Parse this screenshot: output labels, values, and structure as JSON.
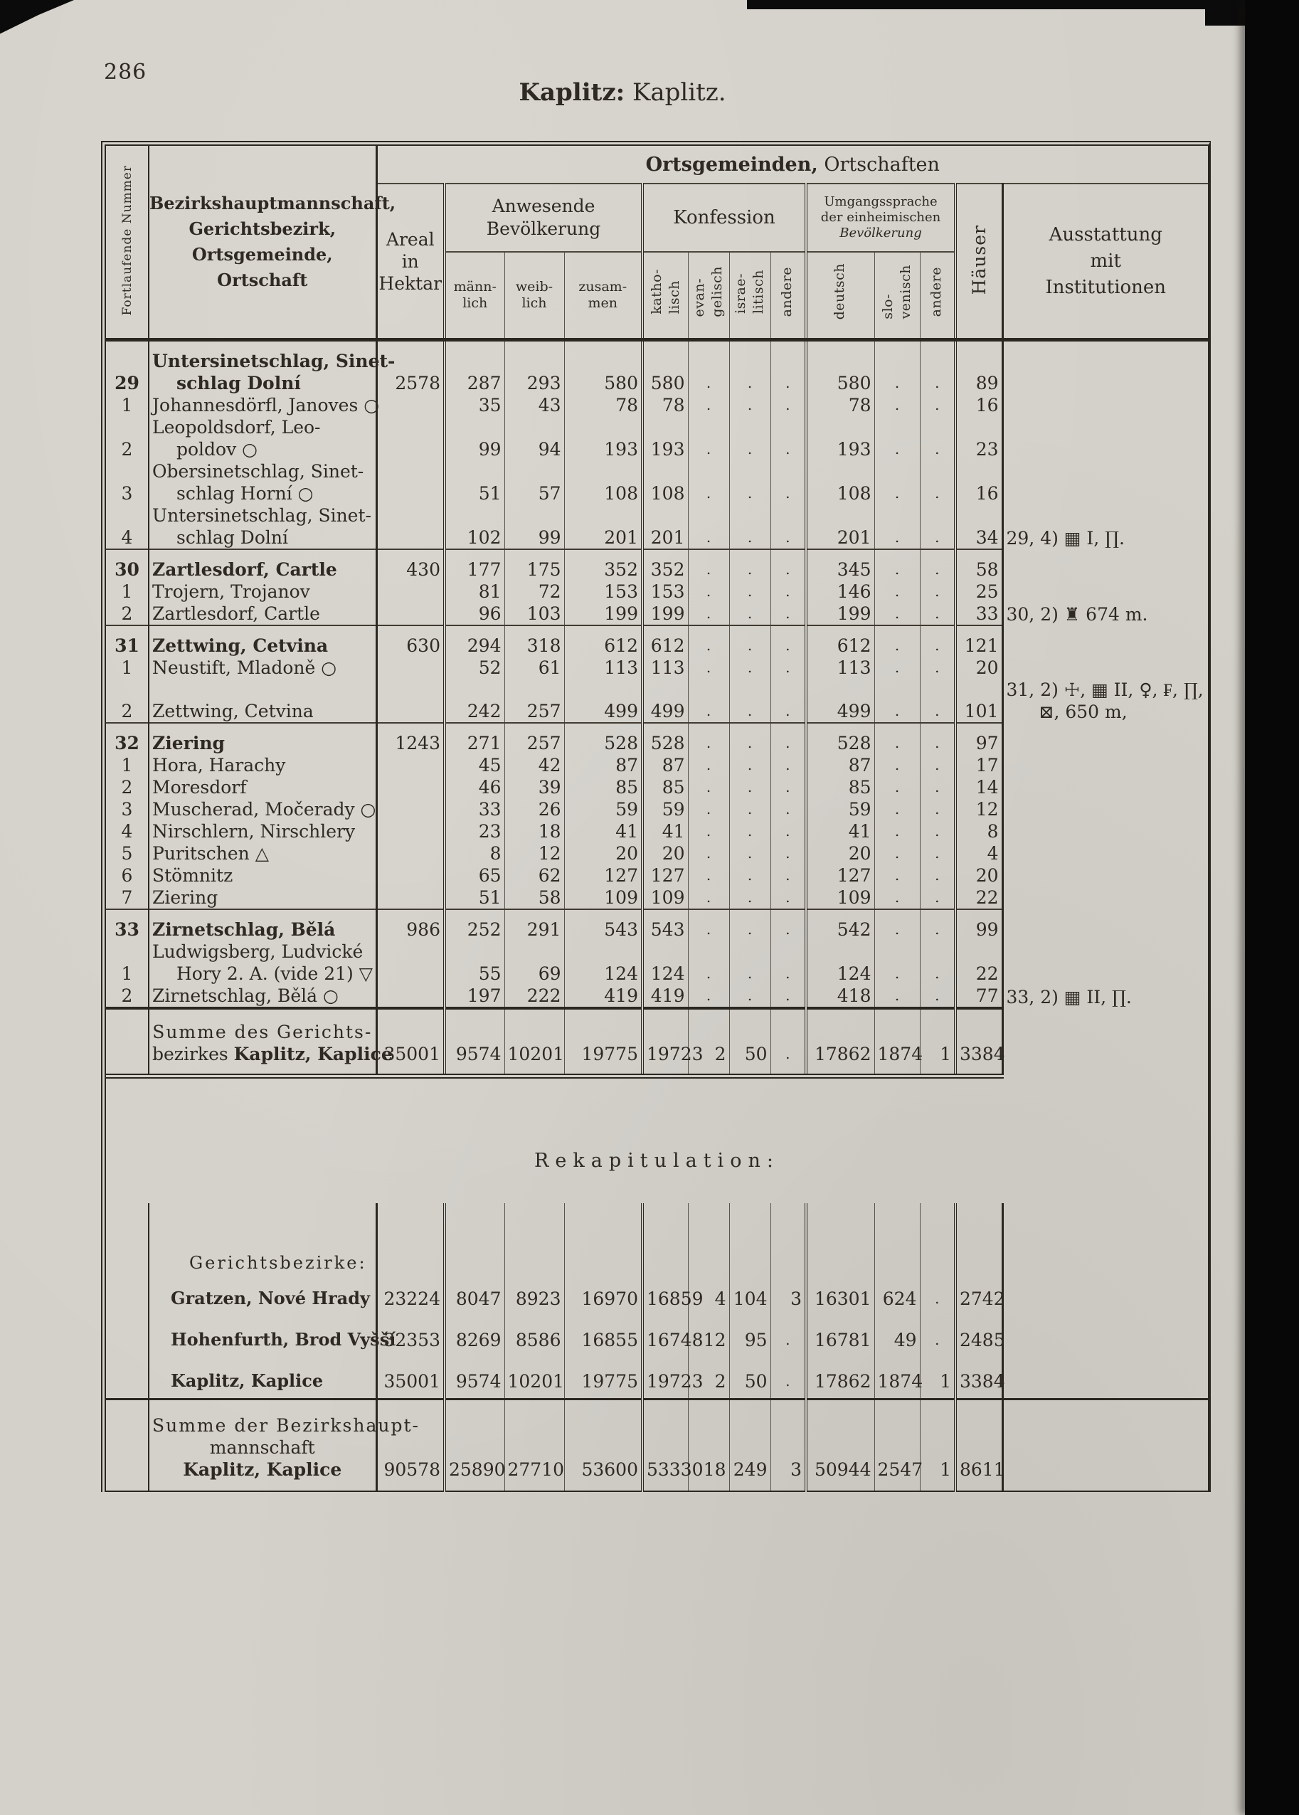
{
  "page": {
    "number": "286",
    "title_bold": "Kaplitz:",
    "title_regular": " Kaplitz."
  },
  "header": {
    "nr_rot": "Fortlaufende Nummer",
    "name_lines": [
      "Bezirkshauptmannschaft,",
      "Gerichtsbezirk,",
      "Ortsgemeinde,",
      "Ortschaft"
    ],
    "span_bold": "Ortsgemeinden,",
    "span_rest": " Ortschaften",
    "areal_lines": [
      "Areal",
      "in",
      "Hektar"
    ],
    "pop_group": [
      "Anwesende",
      "Bevölkerung"
    ],
    "pop_m": [
      "männ-",
      "lich"
    ],
    "pop_w": [
      "weib-",
      "lich"
    ],
    "pop_z": [
      "zusam-",
      "men"
    ],
    "konf_group": "Konfession",
    "konf_cols": [
      [
        "katho-",
        "lisch"
      ],
      [
        "evan-",
        "gelisch"
      ],
      [
        "israe-",
        "litisch"
      ],
      [
        "andere",
        ""
      ]
    ],
    "lang_group": [
      "Umgangssprache",
      "der einheimischen",
      "Bevölkerung"
    ],
    "lang_cols": [
      [
        "deutsch",
        ""
      ],
      [
        "slo-",
        "venisch"
      ],
      [
        "andere",
        ""
      ]
    ],
    "haus": "Häuser",
    "ausst_lines": [
      "Ausstattung",
      "mit",
      "Institutionen"
    ]
  },
  "rows": [
    {
      "nr": "29",
      "b": 1,
      "lines": [
        "Untersinetschlag, Sinet-",
        "schlag Dolní"
      ],
      "a": "2578",
      "m": "287",
      "w": "293",
      "z": "580",
      "k": "580",
      "e": ".",
      "i": ".",
      "o": ".",
      "d": "580",
      "s": ".",
      "o2": ".",
      "h": "89",
      "n": ""
    },
    {
      "nr": "1",
      "lines": [
        "Johannesdörfl, Janoves ○"
      ],
      "a": "",
      "m": "35",
      "w": "43",
      "z": "78",
      "k": "78",
      "e": ".",
      "i": ".",
      "o": ".",
      "d": "78",
      "s": ".",
      "o2": ".",
      "h": "16",
      "n": ""
    },
    {
      "nr": "2",
      "lines": [
        "Leopoldsdorf, Leo-",
        "poldov ○"
      ],
      "a": "",
      "m": "99",
      "w": "94",
      "z": "193",
      "k": "193",
      "e": ".",
      "i": ".",
      "o": ".",
      "d": "193",
      "s": ".",
      "o2": ".",
      "h": "23",
      "n": ""
    },
    {
      "nr": "3",
      "lines": [
        "Obersinetschlag, Sinet-",
        "schlag Horní ○"
      ],
      "a": "",
      "m": "51",
      "w": "57",
      "z": "108",
      "k": "108",
      "e": ".",
      "i": ".",
      "o": ".",
      "d": "108",
      "s": ".",
      "o2": ".",
      "h": "16",
      "n": ""
    },
    {
      "nr": "4",
      "lines": [
        "Untersinetschlag, Sinet-",
        "schlag Dolní"
      ],
      "a": "",
      "m": "102",
      "w": "99",
      "z": "201",
      "k": "201",
      "e": ".",
      "i": ".",
      "o": ".",
      "d": "201",
      "s": ".",
      "o2": ".",
      "h": "34",
      "n": "29, 4) ▦ I, ∏."
    },
    {
      "sep": "thin",
      "nr": "30",
      "b": 1,
      "lines": [
        "Zartlesdorf, Cartle"
      ],
      "a": "430",
      "m": "177",
      "w": "175",
      "z": "352",
      "k": "352",
      "e": ".",
      "i": ".",
      "o": ".",
      "d": "345",
      "s": ".",
      "o2": ".",
      "h": "58",
      "n": ""
    },
    {
      "nr": "1",
      "lines": [
        "Trojern, Trojanov"
      ],
      "a": "",
      "m": "81",
      "w": "72",
      "z": "153",
      "k": "153",
      "e": ".",
      "i": ".",
      "o": ".",
      "d": "146",
      "s": ".",
      "o2": ".",
      "h": "25",
      "n": ""
    },
    {
      "nr": "2",
      "lines": [
        "Zartlesdorf, Cartle"
      ],
      "a": "",
      "m": "96",
      "w": "103",
      "z": "199",
      "k": "199",
      "e": ".",
      "i": ".",
      "o": ".",
      "d": "199",
      "s": ".",
      "o2": ".",
      "h": "33",
      "n": "30, 2) ♜ 674 m."
    },
    {
      "sep": "thin",
      "nr": "31",
      "b": 1,
      "lines": [
        "Zettwing, Cetvina"
      ],
      "a": "630",
      "m": "294",
      "w": "318",
      "z": "612",
      "k": "612",
      "e": ".",
      "i": ".",
      "o": ".",
      "d": "612",
      "s": ".",
      "o2": ".",
      "h": "121",
      "n": ""
    },
    {
      "nr": "1",
      "lines": [
        "Neustift, Mladoně ○"
      ],
      "a": "",
      "m": "52",
      "w": "61",
      "z": "113",
      "k": "113",
      "e": ".",
      "i": ".",
      "o": ".",
      "d": "113",
      "s": ".",
      "o2": ".",
      "h": "20",
      "n": ""
    },
    {
      "nr": "2",
      "lines": [
        "Zettwing, Cetvina"
      ],
      "a": "",
      "m": "242",
      "w": "257",
      "z": "499",
      "k": "499",
      "e": ".",
      "i": ".",
      "o": ".",
      "d": "499",
      "s": ".",
      "o2": ".",
      "h": "101",
      "n": "31, 2) ☩, ▦ II, ♀, ₣, ∏,",
      "n2": "⊠, 650 m,"
    },
    {
      "sep": "thin",
      "nr": "32",
      "b": 1,
      "lines": [
        "Ziering"
      ],
      "a": "1243",
      "m": "271",
      "w": "257",
      "z": "528",
      "k": "528",
      "e": ".",
      "i": ".",
      "o": ".",
      "d": "528",
      "s": ".",
      "o2": ".",
      "h": "97",
      "n": ""
    },
    {
      "nr": "1",
      "lines": [
        "Hora, Harachy"
      ],
      "a": "",
      "m": "45",
      "w": "42",
      "z": "87",
      "k": "87",
      "e": ".",
      "i": ".",
      "o": ".",
      "d": "87",
      "s": ".",
      "o2": ".",
      "h": "17",
      "n": ""
    },
    {
      "nr": "2",
      "lines": [
        "Moresdorf"
      ],
      "a": "",
      "m": "46",
      "w": "39",
      "z": "85",
      "k": "85",
      "e": ".",
      "i": ".",
      "o": ".",
      "d": "85",
      "s": ".",
      "o2": ".",
      "h": "14",
      "n": ""
    },
    {
      "nr": "3",
      "lines": [
        "Muscherad, Močerady ○"
      ],
      "a": "",
      "m": "33",
      "w": "26",
      "z": "59",
      "k": "59",
      "e": ".",
      "i": ".",
      "o": ".",
      "d": "59",
      "s": ".",
      "o2": ".",
      "h": "12",
      "n": ""
    },
    {
      "nr": "4",
      "lines": [
        "Nirschlern, Nirschlery"
      ],
      "a": "",
      "m": "23",
      "w": "18",
      "z": "41",
      "k": "41",
      "e": ".",
      "i": ".",
      "o": ".",
      "d": "41",
      "s": ".",
      "o2": ".",
      "h": "8",
      "n": ""
    },
    {
      "nr": "5",
      "lines": [
        "Puritschen △"
      ],
      "a": "",
      "m": "8",
      "w": "12",
      "z": "20",
      "k": "20",
      "e": ".",
      "i": ".",
      "o": ".",
      "d": "20",
      "s": ".",
      "o2": ".",
      "h": "4",
      "n": ""
    },
    {
      "nr": "6",
      "lines": [
        "Stömnitz"
      ],
      "a": "",
      "m": "65",
      "w": "62",
      "z": "127",
      "k": "127",
      "e": ".",
      "i": ".",
      "o": ".",
      "d": "127",
      "s": ".",
      "o2": ".",
      "h": "20",
      "n": ""
    },
    {
      "nr": "7",
      "lines": [
        "Ziering"
      ],
      "a": "",
      "m": "51",
      "w": "58",
      "z": "109",
      "k": "109",
      "e": ".",
      "i": ".",
      "o": ".",
      "d": "109",
      "s": ".",
      "o2": ".",
      "h": "22",
      "n": ""
    },
    {
      "sep": "thin",
      "nr": "33",
      "b": 1,
      "lines": [
        "Zirnetschlag, Bělá"
      ],
      "a": "986",
      "m": "252",
      "w": "291",
      "z": "543",
      "k": "543",
      "e": ".",
      "i": ".",
      "o": ".",
      "d": "542",
      "s": ".",
      "o2": ".",
      "h": "99",
      "n": ""
    },
    {
      "nr": "1",
      "lines": [
        "Ludwigsberg, Ludvické",
        "Hory 2. A. (vide 21) ▽"
      ],
      "a": "",
      "m": "55",
      "w": "69",
      "z": "124",
      "k": "124",
      "e": ".",
      "i": ".",
      "o": ".",
      "d": "124",
      "s": ".",
      "o2": ".",
      "h": "22",
      "n": ""
    },
    {
      "nr": "2",
      "lines": [
        "Zirnetschlag, Bělá ○"
      ],
      "a": "",
      "m": "197",
      "w": "222",
      "z": "419",
      "k": "419",
      "e": ".",
      "i": ".",
      "o": ".",
      "d": "418",
      "s": ".",
      "o2": ".",
      "h": "77",
      "n": "33, 2) ▦ II, ∏."
    },
    {
      "sep": "thick",
      "cls": "summe",
      "nr": "",
      "lines": [
        "Summe des Gerichts-",
        "bezirkes |Kaplitz, Kaplice"
      ],
      "a": "35001",
      "m": "9574",
      "w": "10201",
      "z": "19775",
      "k": "19723",
      "e": "2",
      "i": "50",
      "o": ".",
      "d": "17862",
      "s": "1874",
      "o2": "1",
      "h": "3384",
      "n": ""
    }
  ],
  "rekap": {
    "title": "Rekapitulation:",
    "label": "Gerichtsbezirke:",
    "rows": [
      {
        "b": 1,
        "nr": "",
        "lines": [
          "Gratzen, Nové Hrady"
        ],
        "a": "23224",
        "m": "8047",
        "w": "8923",
        "z": "16970",
        "k": "16859",
        "e": "4",
        "i": "104",
        "o": "3",
        "d": "16301",
        "s": "624",
        "o2": ".",
        "h": "2742",
        "n": ""
      },
      {
        "b": 1,
        "nr": "",
        "lines": [
          "Hohenfurth, Brod Vyšší"
        ],
        "a": "32353",
        "m": "8269",
        "w": "8586",
        "z": "16855",
        "k": "16748",
        "e": "12",
        "i": "95",
        "o": ".",
        "d": "16781",
        "s": "49",
        "o2": ".",
        "h": "2485",
        "n": ""
      },
      {
        "b": 1,
        "nr": "",
        "lines": [
          "Kaplitz, Kaplice"
        ],
        "a": "35001",
        "m": "9574",
        "w": "10201",
        "z": "19775",
        "k": "19723",
        "e": "2",
        "i": "50",
        "o": ".",
        "d": "17862",
        "s": "1874",
        "o2": "1",
        "h": "3384",
        "n": ""
      },
      {
        "cls": "summe",
        "nr": "",
        "lines": [
          "Summe der Bezirkshaupt-",
          "mannschaft",
          "|Kaplitz, Kaplice"
        ],
        "a": "90578",
        "m": "25890",
        "w": "27710",
        "z": "53600",
        "k": "53330",
        "e": "18",
        "i": "249",
        "o": "3",
        "d": "50944",
        "s": "2547",
        "o2": "1",
        "h": "8611",
        "n": ""
      }
    ]
  }
}
